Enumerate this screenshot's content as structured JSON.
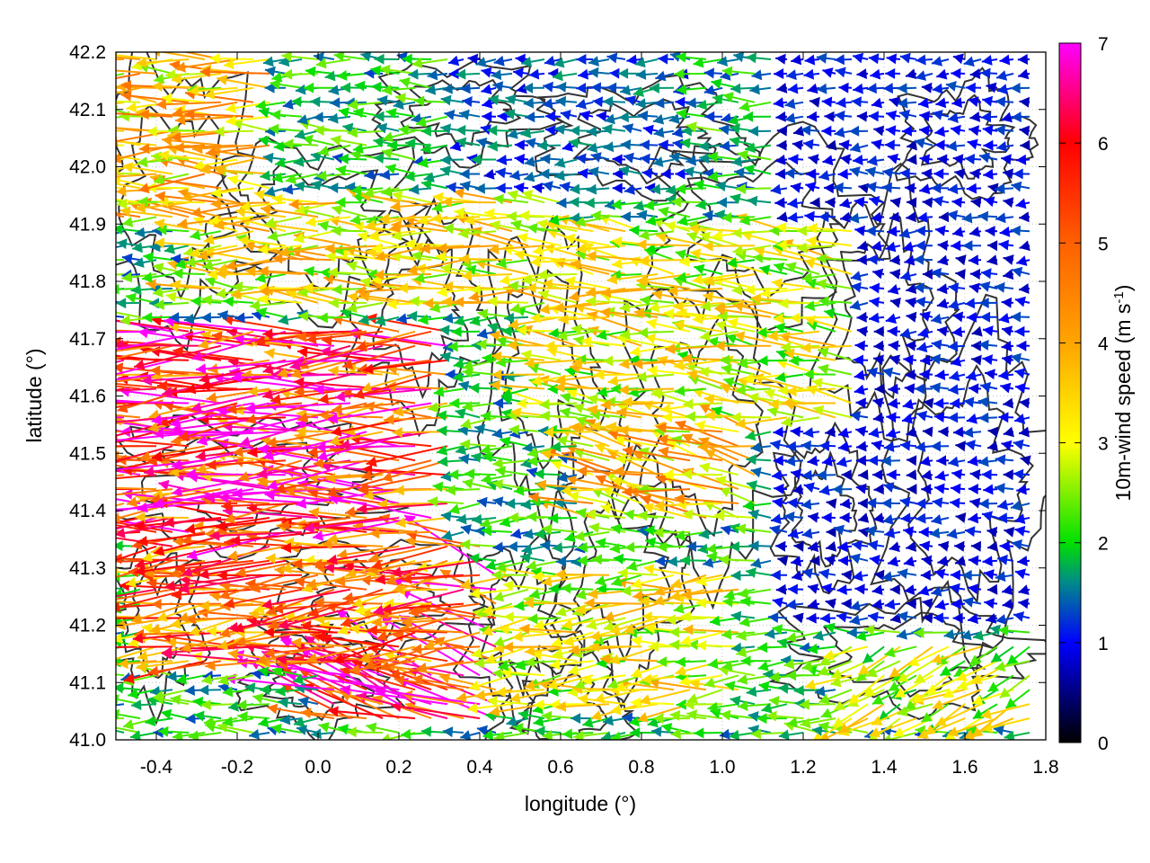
{
  "chart_data": {
    "type": "vector-field",
    "xlabel": "longitude (°)",
    "ylabel": "latitude (°)",
    "xlim": [
      -0.5,
      1.8
    ],
    "ylim": [
      41.0,
      42.2
    ],
    "xticks": [
      "-0.4",
      "-0.2",
      "0.0",
      "0.2",
      "0.4",
      "0.6",
      "0.8",
      "1.0",
      "1.2",
      "1.4",
      "1.6",
      "1.8"
    ],
    "xtick_values": [
      -0.4,
      -0.2,
      0.0,
      0.2,
      0.4,
      0.6,
      0.8,
      1.0,
      1.2,
      1.4,
      1.6,
      1.8
    ],
    "yticks": [
      "41.0",
      "41.1",
      "41.2",
      "41.3",
      "41.4",
      "41.5",
      "41.6",
      "41.7",
      "41.8",
      "41.9",
      "42.0",
      "42.1",
      "42.2"
    ],
    "ytick_values": [
      41.0,
      41.1,
      41.2,
      41.3,
      41.4,
      41.5,
      41.6,
      41.7,
      41.8,
      41.9,
      42.0,
      42.1,
      42.2
    ],
    "grid": true,
    "colorbar": {
      "label_main": "10m-wind speed (m s",
      "label_sup": "-1",
      "label_close": ")",
      "range": [
        0,
        7
      ],
      "ticks": [
        "0",
        "1",
        "2",
        "3",
        "4",
        "5",
        "6",
        "7"
      ],
      "tick_values": [
        0,
        1,
        2,
        3,
        4,
        5,
        6,
        7
      ],
      "color_stops": [
        {
          "v": 0,
          "c": "#000000"
        },
        {
          "v": 1,
          "c": "#0000ff"
        },
        {
          "v": 1.6,
          "c": "#008a8a"
        },
        {
          "v": 2,
          "c": "#00e000"
        },
        {
          "v": 3,
          "c": "#ffff00"
        },
        {
          "v": 4,
          "c": "#ffa500"
        },
        {
          "v": 5,
          "c": "#ff6000"
        },
        {
          "v": 6,
          "c": "#ff0000"
        },
        {
          "v": 7,
          "c": "#ff00ff"
        }
      ]
    },
    "vector_grid": {
      "dlon": 0.04,
      "dlat": 0.025
    },
    "wind_regions": [
      {
        "lon": [
          -0.5,
          0.35
        ],
        "lat": [
          41.35,
          41.72
        ],
        "speed": 5.6,
        "dir_deg": 182
      },
      {
        "lon": [
          -0.4,
          0.4
        ],
        "lat": [
          41.12,
          41.35
        ],
        "speed": 4.8,
        "dir_deg": 185
      },
      {
        "lon": [
          0.0,
          0.45
        ],
        "lat": [
          41.02,
          41.3
        ],
        "speed": 6.0,
        "dir_deg": 160
      },
      {
        "lon": [
          -0.5,
          -0.1
        ],
        "lat": [
          41.9,
          42.2
        ],
        "speed": 3.6,
        "dir_deg": 180
      },
      {
        "lon": [
          -0.3,
          0.6
        ],
        "lat": [
          41.75,
          41.95
        ],
        "speed": 3.2,
        "dir_deg": 178
      },
      {
        "lon": [
          0.55,
          1.35
        ],
        "lat": [
          41.55,
          41.9
        ],
        "speed": 3.0,
        "dir_deg": 175
      },
      {
        "lon": [
          0.65,
          1.1
        ],
        "lat": [
          41.38,
          41.55
        ],
        "speed": 3.6,
        "dir_deg": 168
      },
      {
        "lon": [
          1.3,
          1.8
        ],
        "lat": [
          41.02,
          41.18
        ],
        "speed": 2.8,
        "dir_deg": 205
      },
      {
        "lon": [
          0.4,
          1.05
        ],
        "lat": [
          41.05,
          41.3
        ],
        "speed": 3.0,
        "dir_deg": 185
      },
      {
        "lon": [
          1.15,
          1.8
        ],
        "lat": [
          41.2,
          42.2
        ],
        "speed": 1.0,
        "dir_deg": 180
      },
      {
        "lon": [
          0.35,
          0.95
        ],
        "lat": [
          41.95,
          42.2
        ],
        "speed": 1.3,
        "dir_deg": 180
      }
    ],
    "background_wind": {
      "speed": 1.9,
      "dir_deg": 180
    },
    "contour_color": "#333333"
  }
}
